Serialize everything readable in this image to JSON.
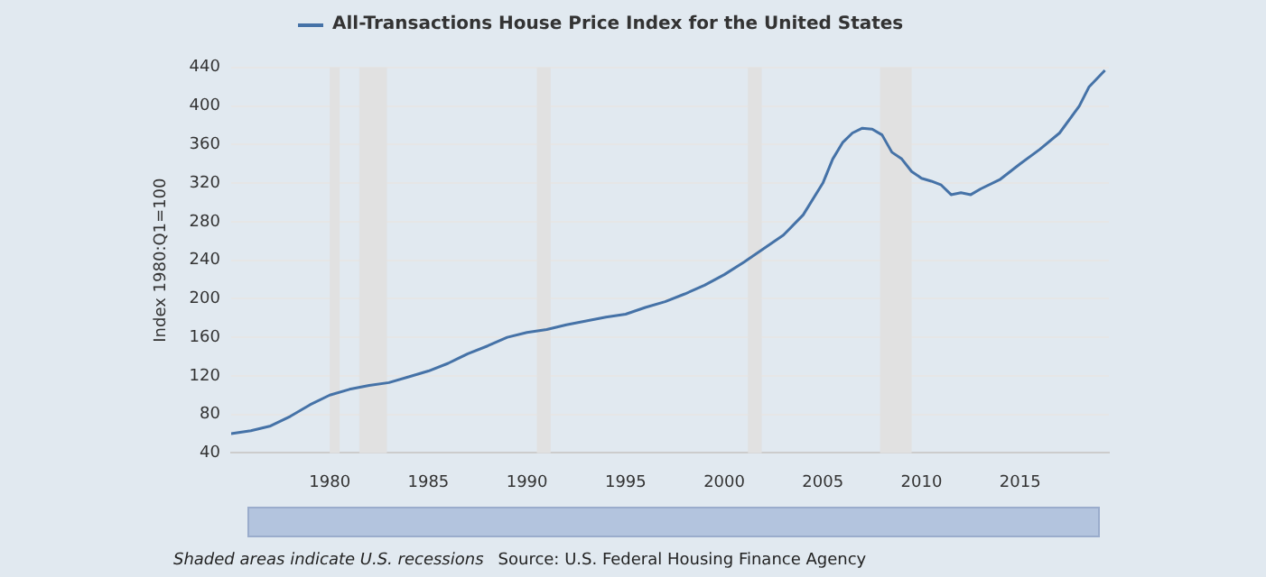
{
  "chart_data": {
    "type": "line",
    "ylabel": "Index 1980:Q1=100",
    "x": [
      1975,
      1976,
      1977,
      1978,
      1979,
      1980,
      1981,
      1982,
      1983,
      1984,
      1985,
      1986,
      1987,
      1988,
      1989,
      1990,
      1991,
      1992,
      1993,
      1994,
      1995,
      1996,
      1997,
      1998,
      1999,
      2000,
      2001,
      2002,
      2003,
      2004,
      2005,
      2005.5,
      2006,
      2006.5,
      2007,
      2007.5,
      2008,
      2008.5,
      2009,
      2009.5,
      2010,
      2010.5,
      2011,
      2011.5,
      2012,
      2012.5,
      2013,
      2014,
      2015,
      2016,
      2017,
      2018,
      2018.5,
      2019.3
    ],
    "series": [
      {
        "name": "All-Transactions House Price Index for the United States",
        "color": "#4572a7",
        "values": [
          60,
          63,
          68,
          78,
          90,
          100,
          106,
          110,
          113,
          119,
          125,
          133,
          143,
          151,
          160,
          165,
          168,
          173,
          177,
          181,
          184,
          191,
          197,
          205,
          214,
          225,
          238,
          252,
          266,
          287,
          320,
          345,
          362,
          372,
          377,
          376,
          370,
          352,
          345,
          332,
          325,
          322,
          318,
          308,
          310,
          308,
          314,
          324,
          340,
          355,
          372,
          400,
          420,
          437
        ]
      }
    ],
    "xlim": [
      1975,
      2019.5
    ],
    "xticks": [
      1980,
      1985,
      1990,
      1995,
      2000,
      2005,
      2010,
      2015
    ],
    "ylim": [
      40,
      440
    ],
    "yticks": [
      40,
      80,
      120,
      160,
      200,
      240,
      280,
      320,
      360,
      400,
      440
    ],
    "grid": "y",
    "legend": "top left",
    "marker": "none",
    "line_style": "solid",
    "bands": [
      {
        "axis": "x",
        "from": 1980,
        "to": 1980.5,
        "color": "#e1e1e1"
      },
      {
        "axis": "x",
        "from": 1981.5,
        "to": 1982.9,
        "color": "#e1e1e1"
      },
      {
        "axis": "x",
        "from": 1990.5,
        "to": 1991.2,
        "color": "#e1e1e1"
      },
      {
        "axis": "x",
        "from": 2001.2,
        "to": 2001.9,
        "color": "#e1e1e1"
      },
      {
        "axis": "x",
        "from": 2007.9,
        "to": 2009.5,
        "color": "#e1e1e1"
      }
    ],
    "annotations": [
      "Shaded areas indicate U.S. recessions",
      "Source: U.S. Federal Housing Finance Agency"
    ]
  }
}
